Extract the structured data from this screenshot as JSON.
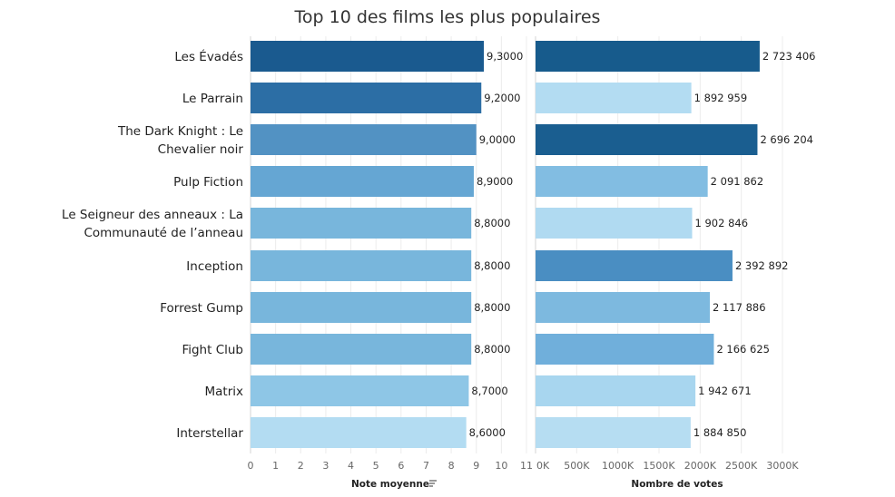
{
  "chart_data": {
    "title": "Top 10 des films les plus populaires",
    "categories": [
      "Les Évadés",
      "Le Parrain",
      "The Dark Knight : Le Chevalier noir",
      "Pulp Fiction",
      "Le Seigneur des anneaux : La Communauté de l'anneau",
      "Inception",
      "Forrest Gump",
      "Fight Club",
      "Matrix",
      "Interstellar"
    ],
    "category_display_lines": [
      [
        "Les Évadés"
      ],
      [
        "Le Parrain"
      ],
      [
        "The Dark Knight : Le",
        "Chevalier noir"
      ],
      [
        "Pulp Fiction"
      ],
      [
        "Le Seigneur des anneaux : La",
        "Communauté de l’anneau"
      ],
      [
        "Inception"
      ],
      [
        "Forrest Gump"
      ],
      [
        "Fight Club"
      ],
      [
        "Matrix"
      ],
      [
        "Interstellar"
      ]
    ],
    "panels": [
      {
        "type": "bar",
        "orientation": "horizontal",
        "xlabel": "Note moyenne",
        "sort_icon": "sort-descending-icon",
        "xlim": [
          0,
          11
        ],
        "ticks": [
          0,
          1,
          2,
          3,
          4,
          5,
          6,
          7,
          8,
          9,
          10,
          11
        ],
        "tick_labels": [
          "0",
          "1",
          "2",
          "3",
          "4",
          "5",
          "6",
          "7",
          "8",
          "9",
          "10",
          "11"
        ],
        "values": [
          9.3,
          9.2,
          9.0,
          8.9,
          8.8,
          8.8,
          8.8,
          8.8,
          8.7,
          8.6
        ],
        "value_labels": [
          "9,3000",
          "9,2000",
          "9,0000",
          "8,9000",
          "8,8000",
          "8,8000",
          "8,8000",
          "8,8000",
          "8,7000",
          "8,6000"
        ],
        "bar_colors": [
          "#1a5a8f",
          "#2c6ea5",
          "#5292c3",
          "#65a6d3",
          "#78b6dc",
          "#78b6dc",
          "#78b6dc",
          "#78b6dc",
          "#8ec6e6",
          "#b3dcf2"
        ]
      },
      {
        "type": "bar",
        "orientation": "horizontal",
        "xlabel": "Nombre de votes",
        "xlim": [
          0,
          3000000
        ],
        "ticks": [
          0,
          500000,
          1000000,
          1500000,
          2000000,
          2500000,
          3000000
        ],
        "tick_labels": [
          "0K",
          "500K",
          "1000K",
          "1500K",
          "2000K",
          "2500K",
          "3000K"
        ],
        "values": [
          2723406,
          1892959,
          2696204,
          2091862,
          1902846,
          2392892,
          2117886,
          2166625,
          1942671,
          1884850
        ],
        "value_labels": [
          "2 723 406",
          "1 892 959",
          "2 696 204",
          "2 091 862",
          "1 902 846",
          "2 392 892",
          "2 117 886",
          "2 166 625",
          "1 942 671",
          "1 884 850"
        ],
        "bar_colors": [
          "#175b8c",
          "#b3dcf2",
          "#1a5e90",
          "#82bde2",
          "#b0daf1",
          "#4a8ec2",
          "#7db9df",
          "#70afdb",
          "#a8d6ef",
          "#b6ddf2"
        ]
      }
    ],
    "grid": true,
    "legend": "none"
  }
}
